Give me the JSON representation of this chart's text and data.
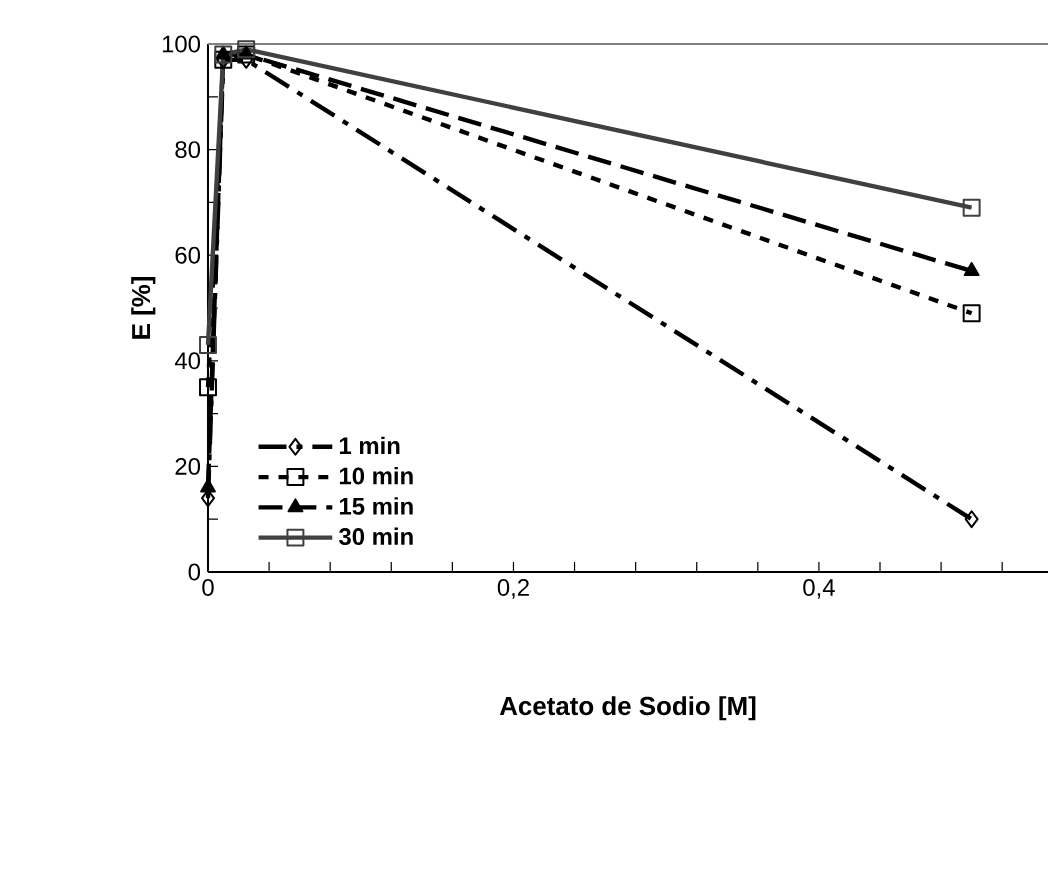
{
  "chart_data": {
    "type": "line",
    "xlabel": "Acetato de Sodio [M]",
    "ylabel": "E [%]",
    "x": [
      0,
      0.01,
      0.025,
      0.5
    ],
    "series": [
      {
        "name": "1 min",
        "color": "#000000",
        "marker": "diamond",
        "line_style": "dashdot",
        "values": [
          14,
          97,
          97,
          10
        ]
      },
      {
        "name": "10 min",
        "color": "#000000",
        "marker": "square",
        "line_style": "dotted",
        "values": [
          35,
          97,
          98,
          49
        ]
      },
      {
        "name": "15 min",
        "color": "#000000",
        "marker": "triangle",
        "line_style": "dashed",
        "values": [
          16,
          98,
          98,
          57
        ]
      },
      {
        "name": "30 min",
        "color": "#404040",
        "marker": "square",
        "line_style": "solid",
        "values": [
          43,
          98,
          99,
          69
        ]
      }
    ],
    "xlim": [
      0,
      0.55
    ],
    "xticks": [
      0,
      {
        "value": 0.04,
        "label": null
      },
      {
        "value": 0.08,
        "label": null
      },
      {
        "value": 0.12,
        "label": null
      },
      {
        "value": 0.16,
        "label": null
      },
      {
        "value": 0.2,
        "label": "0,2"
      },
      {
        "value": 0.24,
        "label": null
      },
      {
        "value": 0.28,
        "label": null
      },
      {
        "value": 0.32,
        "label": null
      },
      {
        "value": 0.36,
        "label": null
      },
      {
        "value": 0.4,
        "label": "0,4"
      },
      {
        "value": 0.44,
        "label": null
      },
      {
        "value": 0.48,
        "label": null
      },
      {
        "value": 0.52,
        "label": null
      }
    ],
    "ylim": [
      0,
      100
    ],
    "yticks": [
      0,
      {
        "value": 10,
        "label": null
      },
      20,
      {
        "value": 30,
        "label": null
      },
      40,
      {
        "value": 50,
        "label": null
      },
      60,
      {
        "value": 70,
        "label": null
      },
      80,
      {
        "value": 90,
        "label": null
      },
      100
    ],
    "legend": "bottom left",
    "grid": false
  }
}
